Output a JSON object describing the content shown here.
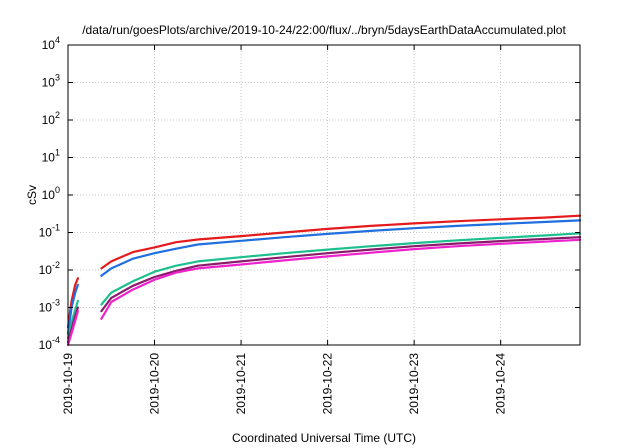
{
  "chart_data": {
    "type": "line",
    "title": "/data/run/goesPlots/archive/2019-10-24/22:00/flux/../bryn/5daysEarthDataAccumulated.plot",
    "xlabel": "Coordinated Universal Time (UTC)",
    "ylabel": "cSv",
    "yscale": "log",
    "ylim": [
      0.0001,
      10000
    ],
    "xlim": [
      "2019-10-19 00:00",
      "2019-10-24 22:00"
    ],
    "grid": true,
    "x_ticks": [
      "2019-10-19",
      "2019-10-20",
      "2019-10-21",
      "2019-10-22",
      "2019-10-23",
      "2019-10-24"
    ],
    "y_ticks": [
      {
        "value": 0.0001,
        "base": "10",
        "exp": "-4"
      },
      {
        "value": 0.001,
        "base": "10",
        "exp": "-3"
      },
      {
        "value": 0.01,
        "base": "10",
        "exp": "-2"
      },
      {
        "value": 0.1,
        "base": "10",
        "exp": "-1"
      },
      {
        "value": 1,
        "base": "10",
        "exp": "0"
      },
      {
        "value": 10,
        "base": "10",
        "exp": "1"
      },
      {
        "value": 100,
        "base": "10",
        "exp": "2"
      },
      {
        "value": 1000,
        "base": "10",
        "exp": "3"
      },
      {
        "value": 10000,
        "base": "10",
        "exp": "4"
      }
    ],
    "series": [
      {
        "color": "#e41a1c",
        "segments": [
          [
            [
              "2019-10-19 00:00",
              0.0003
            ],
            [
              "2019-10-19 01:00",
              0.0015
            ],
            [
              "2019-10-19 02:00",
              0.004
            ],
            [
              "2019-10-19 02:45",
              0.006
            ]
          ],
          [
            [
              "2019-10-19 09:15",
              0.011
            ],
            [
              "2019-10-19 12:00",
              0.017
            ],
            [
              "2019-10-19 18:00",
              0.03
            ],
            [
              "2019-10-20 00:00",
              0.04
            ],
            [
              "2019-10-20 06:00",
              0.055
            ],
            [
              "2019-10-20 12:00",
              0.065
            ],
            [
              "2019-10-21 00:00",
              0.08
            ],
            [
              "2019-10-21 12:00",
              0.1
            ],
            [
              "2019-10-22 00:00",
              0.125
            ],
            [
              "2019-10-22 12:00",
              0.15
            ],
            [
              "2019-10-23 00:00",
              0.175
            ],
            [
              "2019-10-23 12:00",
              0.2
            ],
            [
              "2019-10-24 00:00",
              0.225
            ],
            [
              "2019-10-24 12:00",
              0.25
            ],
            [
              "2019-10-24 22:00",
              0.28
            ]
          ]
        ]
      },
      {
        "color": "#1f6fe0",
        "segments": [
          [
            [
              "2019-10-19 00:00",
              0.0002
            ],
            [
              "2019-10-19 01:00",
              0.001
            ],
            [
              "2019-10-19 02:00",
              0.0025
            ],
            [
              "2019-10-19 02:45",
              0.004
            ]
          ],
          [
            [
              "2019-10-19 09:15",
              0.007
            ],
            [
              "2019-10-19 12:00",
              0.011
            ],
            [
              "2019-10-19 18:00",
              0.02
            ],
            [
              "2019-10-20 00:00",
              0.028
            ],
            [
              "2019-10-20 06:00",
              0.037
            ],
            [
              "2019-10-20 12:00",
              0.048
            ],
            [
              "2019-10-21 00:00",
              0.06
            ],
            [
              "2019-10-21 12:00",
              0.075
            ],
            [
              "2019-10-22 00:00",
              0.092
            ],
            [
              "2019-10-22 12:00",
              0.11
            ],
            [
              "2019-10-23 00:00",
              0.13
            ],
            [
              "2019-10-23 12:00",
              0.15
            ],
            [
              "2019-10-24 00:00",
              0.17
            ],
            [
              "2019-10-24 12:00",
              0.19
            ],
            [
              "2019-10-24 22:00",
              0.21
            ]
          ]
        ]
      },
      {
        "color": "#1dbf8e",
        "segments": [
          [
            [
              "2019-10-19 00:00",
              0.00015
            ],
            [
              "2019-10-19 01:30",
              0.0006
            ],
            [
              "2019-10-19 02:45",
              0.0015
            ]
          ],
          [
            [
              "2019-10-19 09:15",
              0.0012
            ],
            [
              "2019-10-19 12:00",
              0.0025
            ],
            [
              "2019-10-19 18:00",
              0.005
            ],
            [
              "2019-10-20 00:00",
              0.009
            ],
            [
              "2019-10-20 06:00",
              0.013
            ],
            [
              "2019-10-20 12:00",
              0.017
            ],
            [
              "2019-10-21 00:00",
              0.022
            ],
            [
              "2019-10-21 12:00",
              0.028
            ],
            [
              "2019-10-22 00:00",
              0.035
            ],
            [
              "2019-10-22 12:00",
              0.043
            ],
            [
              "2019-10-23 00:00",
              0.052
            ],
            [
              "2019-10-23 12:00",
              0.062
            ],
            [
              "2019-10-24 00:00",
              0.072
            ],
            [
              "2019-10-24 12:00",
              0.083
            ],
            [
              "2019-10-24 22:00",
              0.095
            ]
          ]
        ]
      },
      {
        "color": "#8b1a6b",
        "segments": [
          [
            [
              "2019-10-19 00:00",
              0.00012
            ],
            [
              "2019-10-19 01:30",
              0.0004
            ],
            [
              "2019-10-19 02:45",
              0.001
            ]
          ],
          [
            [
              "2019-10-19 09:15",
              0.0008
            ],
            [
              "2019-10-19 12:00",
              0.0018
            ],
            [
              "2019-10-19 18:00",
              0.0038
            ],
            [
              "2019-10-20 00:00",
              0.0065
            ],
            [
              "2019-10-20 06:00",
              0.0095
            ],
            [
              "2019-10-20 12:00",
              0.013
            ],
            [
              "2019-10-21 00:00",
              0.017
            ],
            [
              "2019-10-21 12:00",
              0.022
            ],
            [
              "2019-10-22 00:00",
              0.028
            ],
            [
              "2019-10-22 12:00",
              0.035
            ],
            [
              "2019-10-23 00:00",
              0.043
            ],
            [
              "2019-10-23 12:00",
              0.051
            ],
            [
              "2019-10-24 00:00",
              0.059
            ],
            [
              "2019-10-24 12:00",
              0.067
            ],
            [
              "2019-10-24 22:00",
              0.075
            ]
          ]
        ]
      },
      {
        "color": "#ee22cc",
        "segments": [
          [
            [
              "2019-10-19 00:00",
              0.0001
            ],
            [
              "2019-10-19 01:30",
              0.0003
            ],
            [
              "2019-10-19 02:45",
              0.0008
            ]
          ],
          [
            [
              "2019-10-19 09:15",
              0.0005
            ],
            [
              "2019-10-19 12:00",
              0.0014
            ],
            [
              "2019-10-19 18:00",
              0.003
            ],
            [
              "2019-10-20 00:00",
              0.0055
            ],
            [
              "2019-10-20 06:00",
              0.0085
            ],
            [
              "2019-10-20 12:00",
              0.011
            ],
            [
              "2019-10-21 00:00",
              0.014
            ],
            [
              "2019-10-21 12:00",
              0.018
            ],
            [
              "2019-10-22 00:00",
              0.023
            ],
            [
              "2019-10-22 12:00",
              0.029
            ],
            [
              "2019-10-23 00:00",
              0.036
            ],
            [
              "2019-10-23 12:00",
              0.043
            ],
            [
              "2019-10-24 00:00",
              0.05
            ],
            [
              "2019-10-24 12:00",
              0.057
            ],
            [
              "2019-10-24 22:00",
              0.064
            ]
          ]
        ]
      }
    ]
  }
}
